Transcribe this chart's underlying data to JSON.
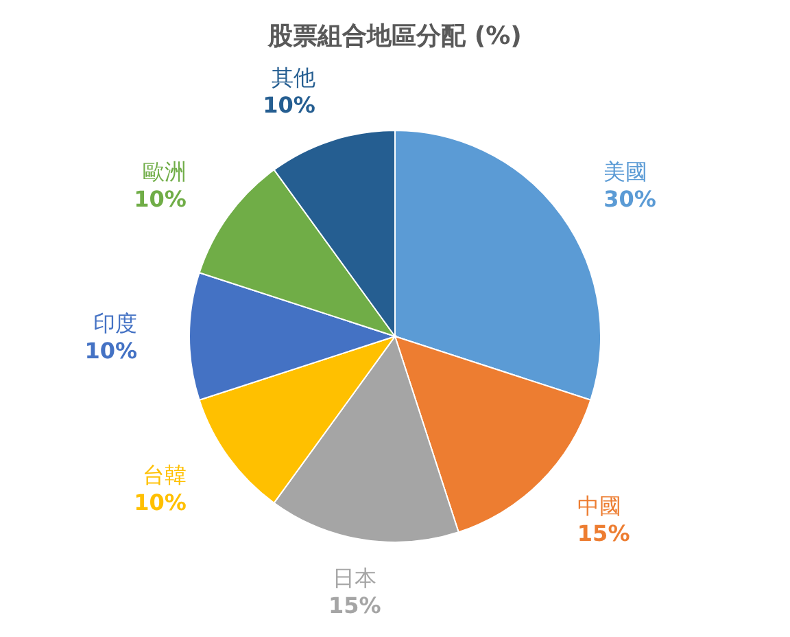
{
  "chart_data": {
    "type": "pie",
    "title": "股票組合地區分配 (%)",
    "categories": [
      "美國",
      "中國",
      "日本",
      "台韓",
      "印度",
      "歐洲",
      "其他"
    ],
    "values": [
      30,
      15,
      15,
      10,
      10,
      10,
      10
    ],
    "value_labels": [
      "30%",
      "15%",
      "15%",
      "10%",
      "10%",
      "10%",
      "10%"
    ],
    "colors": [
      "#5b9bd5",
      "#ed7d31",
      "#a5a5a5",
      "#ffc000",
      "#4472c4",
      "#70ad47",
      "#255e91"
    ]
  }
}
